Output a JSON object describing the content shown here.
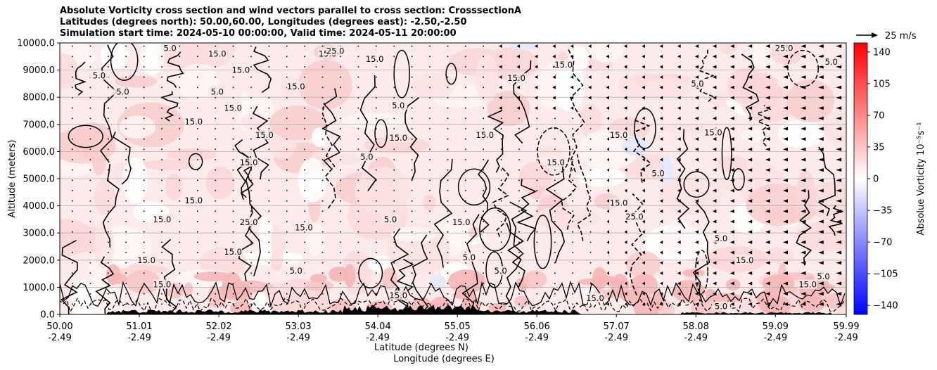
{
  "title_lines": [
    "Absolute Vorticity cross section and wind vectors parallel to cross section: CrosssectionA",
    "Latitudes (degrees north): 50.00,60.00, Longitudes (degrees east): -2.50,-2.50",
    "Simulation start time: 2024-05-10 00:00:00, Valid time: 2024-05-11 20:00:00"
  ],
  "chart_data": {
    "type": "heatmap",
    "ylabel": "Altitude (meters)",
    "xlabel_lines": [
      "Latitude (degrees N)",
      "Longitude (degrees E)"
    ],
    "ylim": [
      0,
      10000
    ],
    "y_ticks": [
      0,
      1000,
      2000,
      3000,
      4000,
      5000,
      6000,
      7000,
      8000,
      9000,
      10000
    ],
    "y_tick_labels": [
      "0.0",
      "1000.0",
      "2000.0",
      "3000.0",
      "4000.0",
      "5000.0",
      "6000.0",
      "7000.0",
      "8000.0",
      "9000.0",
      "10000.0"
    ],
    "x_ticks": [
      {
        "lat": "50.00",
        "lon": "-2.49"
      },
      {
        "lat": "51.01",
        "lon": "-2.49"
      },
      {
        "lat": "52.02",
        "lon": "-2.49"
      },
      {
        "lat": "53.03",
        "lon": "-2.49"
      },
      {
        "lat": "54.04",
        "lon": "-2.49"
      },
      {
        "lat": "55.05",
        "lon": "-2.49"
      },
      {
        "lat": "56.06",
        "lon": "-2.49"
      },
      {
        "lat": "57.07",
        "lon": "-2.49"
      },
      {
        "lat": "58.08",
        "lon": "-2.49"
      },
      {
        "lat": "59.09",
        "lon": "-2.49"
      },
      {
        "lat": "59.99",
        "lon": "-2.49"
      }
    ],
    "grid": "horizontal",
    "colorbar": {
      "label": "Absolue Vorticity 10$^{-5}$s$^{-1}$",
      "label_display": "Absolue Vorticity 10⁻⁵s⁻¹",
      "ticks": [
        -140,
        -105,
        -70,
        -35,
        0,
        35,
        70,
        105,
        140
      ],
      "tick_labels": [
        "−140",
        "−105",
        "−70",
        "−35",
        "0",
        "35",
        "70",
        "105",
        "140"
      ],
      "range": [
        -150,
        150
      ],
      "cmap": [
        "#0000ff",
        "#ffffff",
        "#ff0000"
      ]
    },
    "contour_levels": [
      5.0,
      15.0,
      25.0
    ],
    "contour_labels": [
      {
        "text": "5.0",
        "lat": 51.4,
        "alt": 9800
      },
      {
        "text": "15.0",
        "lat": 52.0,
        "alt": 9600
      },
      {
        "text": "15.0",
        "lat": 52.3,
        "alt": 9000
      },
      {
        "text": "5.0",
        "lat": 50.5,
        "alt": 8800
      },
      {
        "text": "5.0",
        "lat": 50.8,
        "alt": 8200
      },
      {
        "text": "15.0",
        "lat": 53.4,
        "alt": 9600
      },
      {
        "text": "5.0",
        "lat": 52.0,
        "alt": 8200
      },
      {
        "text": "15.0",
        "lat": 52.2,
        "alt": 7600
      },
      {
        "text": "15.0",
        "lat": 51.7,
        "alt": 7100
      },
      {
        "text": "15.0",
        "lat": 52.6,
        "alt": 6600
      },
      {
        "text": "5.0",
        "lat": 54.3,
        "alt": 7700
      },
      {
        "text": "25.0",
        "lat": 53.5,
        "alt": 9700
      },
      {
        "text": "15.0",
        "lat": 54.0,
        "alt": 9400
      },
      {
        "text": "15.0",
        "lat": 53.0,
        "alt": 8400
      },
      {
        "text": "15.0",
        "lat": 54.3,
        "alt": 6500
      },
      {
        "text": "5.0",
        "lat": 53.9,
        "alt": 5800
      },
      {
        "text": "15.0",
        "lat": 52.4,
        "alt": 5600
      },
      {
        "text": "15.0",
        "lat": 51.7,
        "alt": 4200
      },
      {
        "text": "15.0",
        "lat": 51.3,
        "alt": 3500
      },
      {
        "text": "25.0",
        "lat": 52.4,
        "alt": 3400
      },
      {
        "text": "15.0",
        "lat": 53.1,
        "alt": 3200
      },
      {
        "text": "5.0",
        "lat": 54.2,
        "alt": 3500
      },
      {
        "text": "15.0",
        "lat": 51.1,
        "alt": 2000
      },
      {
        "text": "15.0",
        "lat": 52.2,
        "alt": 2300
      },
      {
        "text": "15.0",
        "lat": 51.3,
        "alt": 1100
      },
      {
        "text": "5.0",
        "lat": 53.0,
        "alt": 1600
      },
      {
        "text": "15.0",
        "lat": 55.4,
        "alt": 6600
      },
      {
        "text": "15.0",
        "lat": 55.8,
        "alt": 8700
      },
      {
        "text": "15.0",
        "lat": 56.3,
        "alt": 5600
      },
      {
        "text": "15.0",
        "lat": 56.4,
        "alt": 9200
      },
      {
        "text": "15.0",
        "lat": 57.1,
        "alt": 6600
      },
      {
        "text": "5.0",
        "lat": 57.6,
        "alt": 5200
      },
      {
        "text": "15.0",
        "lat": 58.3,
        "alt": 6700
      },
      {
        "text": "5.0",
        "lat": 58.1,
        "alt": 8500
      },
      {
        "text": "15.0",
        "lat": 55.1,
        "alt": 3400
      },
      {
        "text": "5.0",
        "lat": 55.2,
        "alt": 2100
      },
      {
        "text": "15.0",
        "lat": 57.1,
        "alt": 4100
      },
      {
        "text": "25.0",
        "lat": 57.3,
        "alt": 3600
      },
      {
        "text": "5.0",
        "lat": 58.4,
        "alt": 2800
      },
      {
        "text": "15.0",
        "lat": 58.7,
        "alt": 2000
      },
      {
        "text": "5.0",
        "lat": 59.7,
        "alt": 1400
      },
      {
        "text": "15.0",
        "lat": 59.5,
        "alt": 1100
      },
      {
        "text": "25.0",
        "lat": 59.2,
        "alt": 9800
      },
      {
        "text": "5.0",
        "lat": 59.8,
        "alt": 9300
      },
      {
        "text": "15.0",
        "lat": 54.3,
        "alt": 700
      },
      {
        "text": "5.0",
        "lat": 55.6,
        "alt": 1600
      },
      {
        "text": "15.0",
        "lat": 56.8,
        "alt": 600
      },
      {
        "text": "5.0",
        "lat": 58.4,
        "alt": 300
      }
    ],
    "wind_key": {
      "label": "25 m/s",
      "speed": 25
    }
  }
}
